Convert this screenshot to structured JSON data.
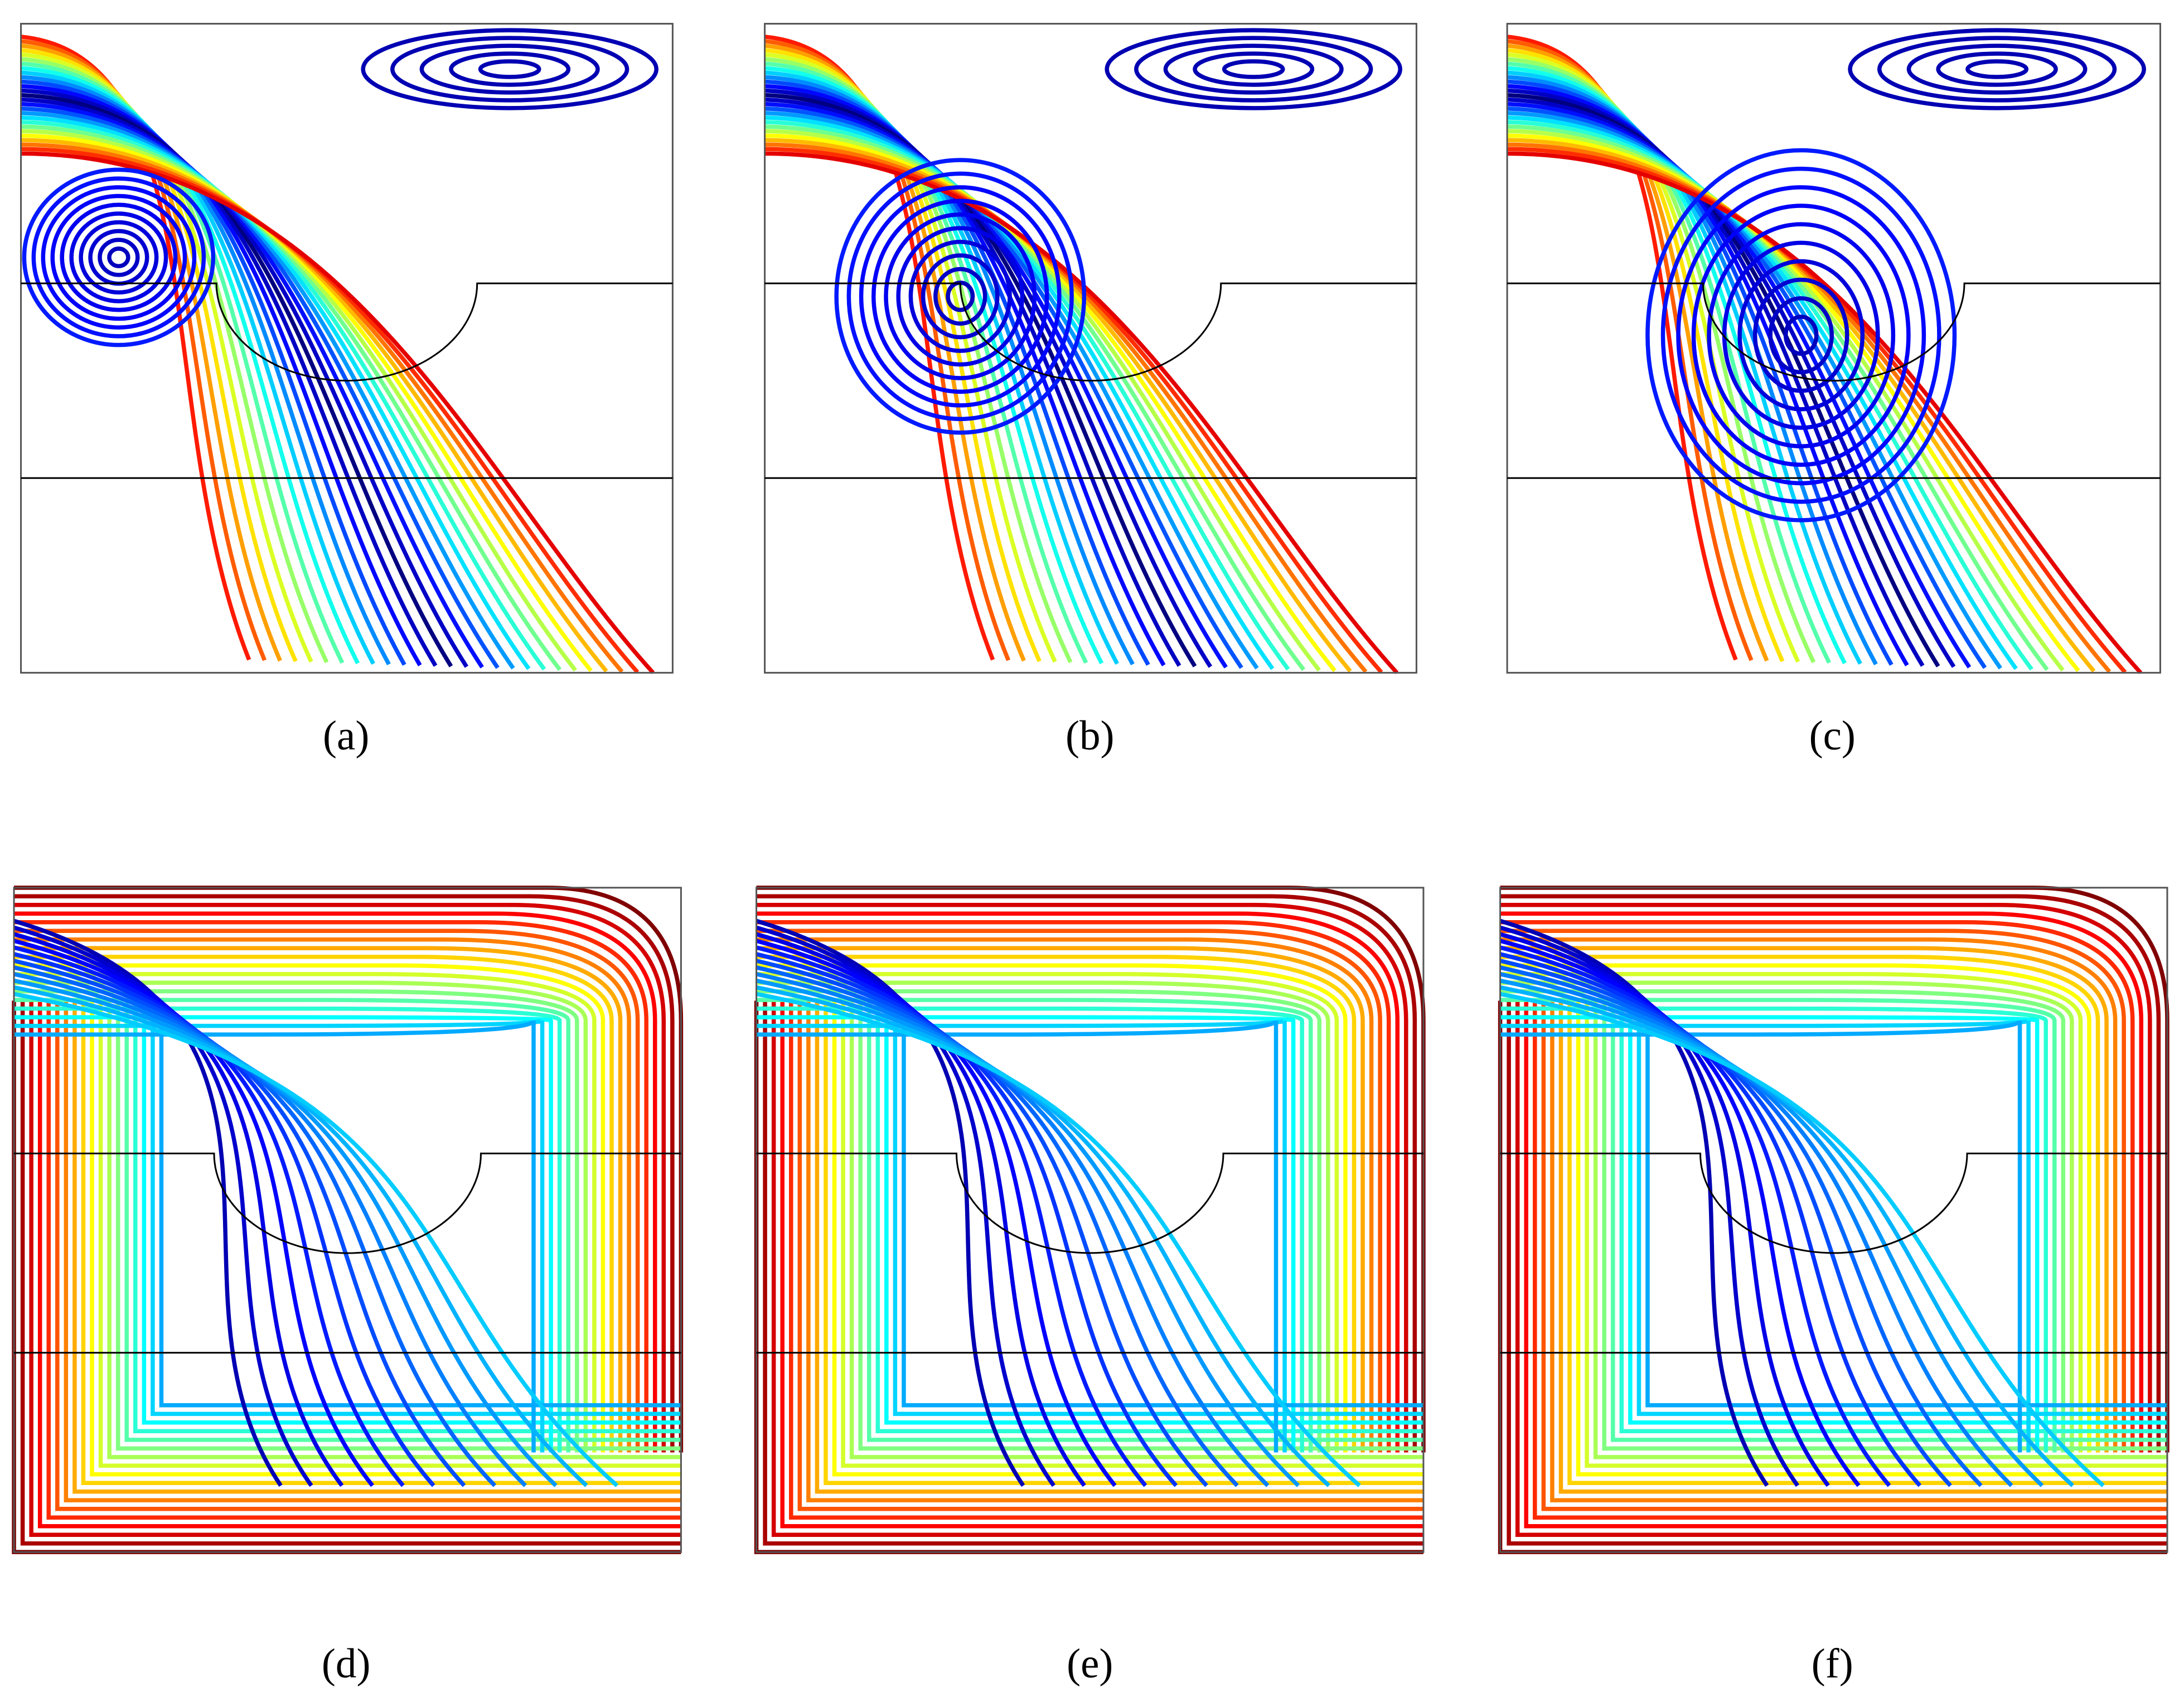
{
  "panels": [
    {
      "label": "(a)",
      "kind": "streamlines"
    },
    {
      "label": "(b)",
      "kind": "streamlines"
    },
    {
      "label": "(c)",
      "kind": "streamlines"
    },
    {
      "label": "(d)",
      "kind": "isotherms"
    },
    {
      "label": "(e)",
      "kind": "isotherms"
    },
    {
      "label": "(f)",
      "kind": "isotherms"
    }
  ]
}
